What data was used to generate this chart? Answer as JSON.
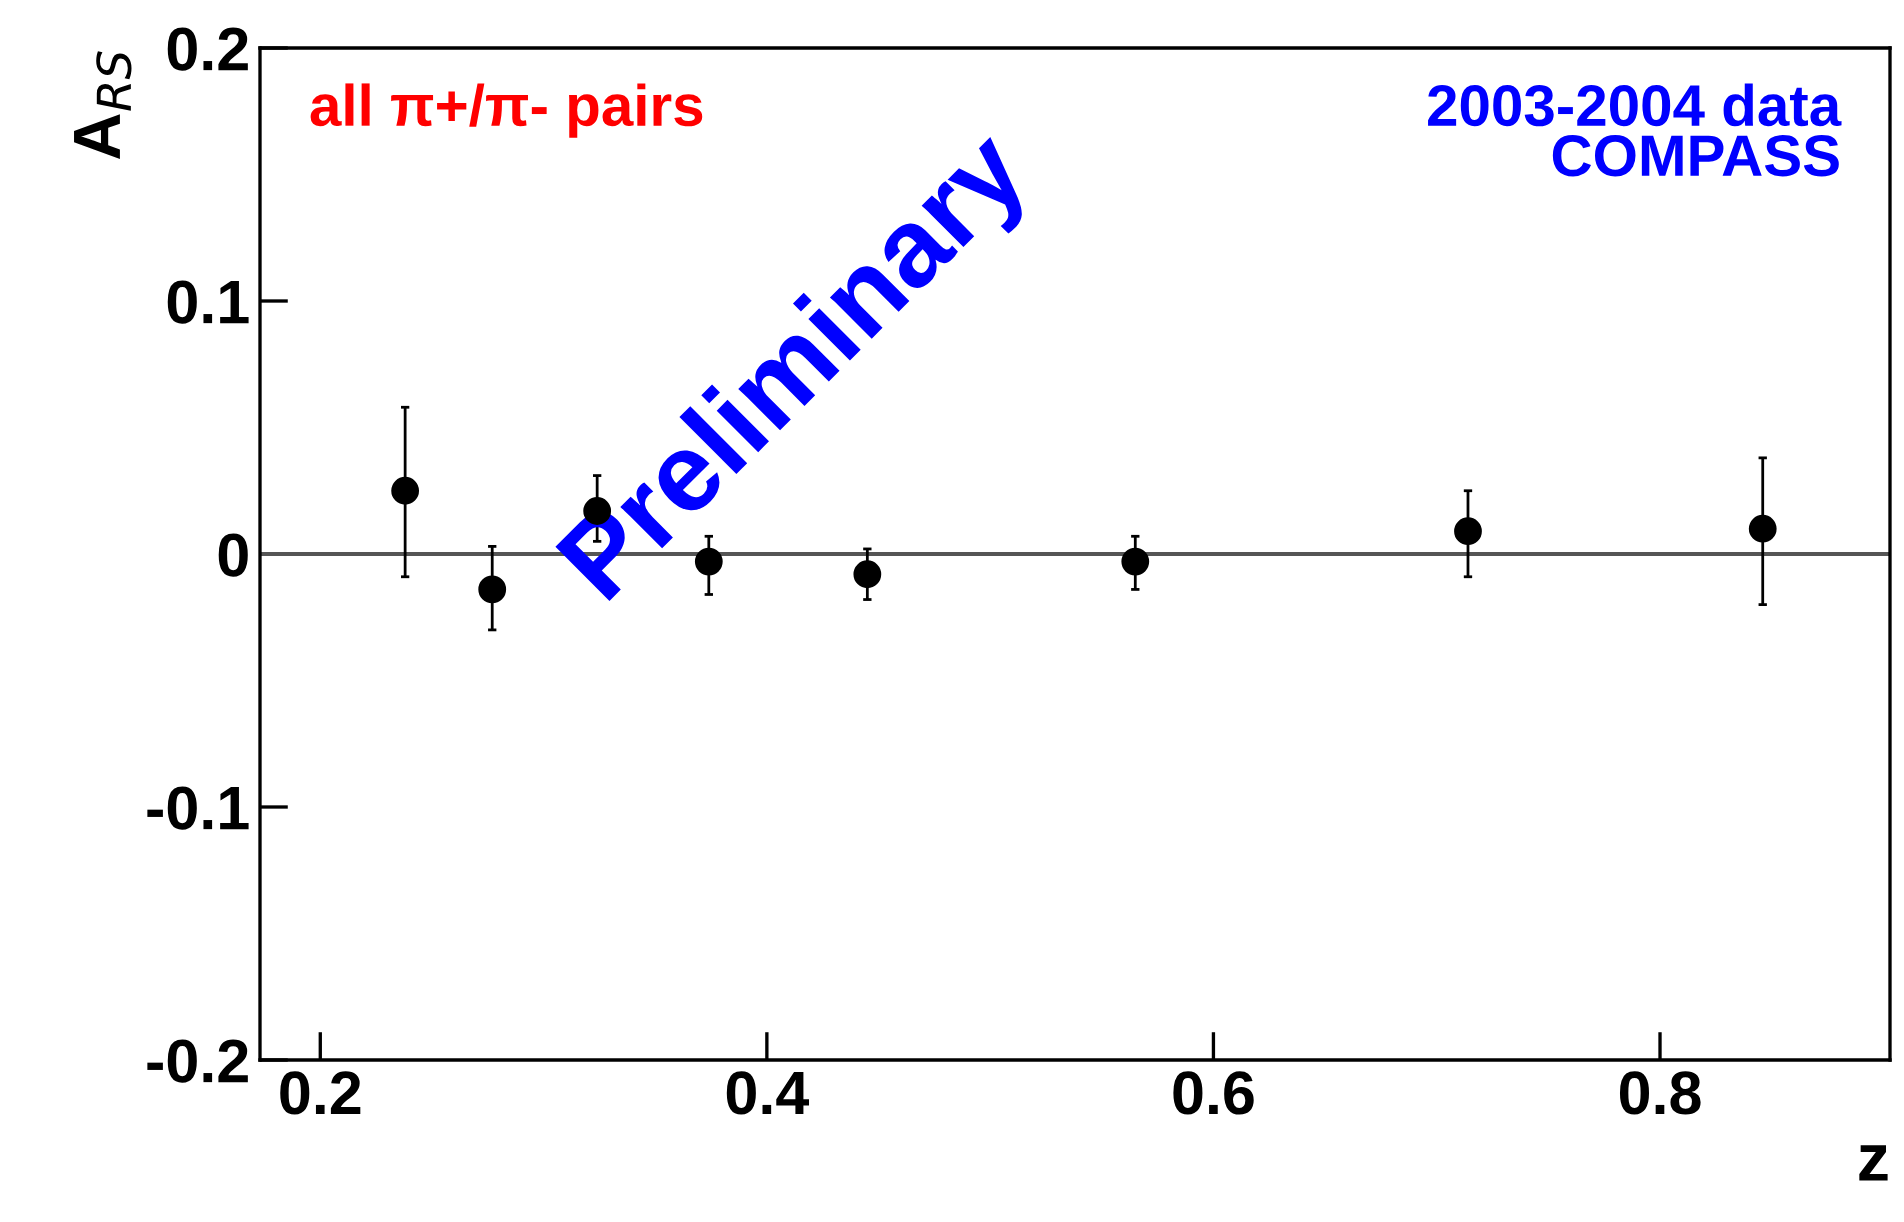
{
  "chart_data": {
    "type": "scatter",
    "xlabel": "z",
    "ylabel": "A$_{RS}$",
    "x": [
      0.238,
      0.277,
      0.324,
      0.374,
      0.445,
      0.565,
      0.714,
      0.846
    ],
    "values": [
      0.025,
      -0.014,
      0.017,
      -0.003,
      -0.008,
      -0.003,
      0.009,
      0.01
    ],
    "errors": [
      [
        -0.009,
        0.058
      ],
      [
        -0.03,
        0.003
      ],
      [
        0.005,
        0.031
      ],
      [
        -0.016,
        0.007
      ],
      [
        -0.018,
        0.002
      ],
      [
        -0.014,
        0.007
      ],
      [
        -0.009,
        0.025
      ],
      [
        -0.02,
        0.038
      ]
    ],
    "color": "#000000",
    "marker": "circle",
    "xlim": [
      0.173,
      0.903
    ],
    "ylim": [
      -0.2,
      0.2
    ],
    "xticks": [
      0.2,
      0.4,
      0.6,
      0.8
    ],
    "yticks": [
      -0.2,
      -0.1,
      0,
      0.1,
      0.2
    ],
    "ref_lines": [
      {
        "axis": "y",
        "value": 0,
        "color": "#555555"
      }
    ],
    "annotations": [
      "all π+/π- pairs",
      "2003-2004 data\nCOMPASS",
      "Preliminary"
    ],
    "grid": false
  }
}
